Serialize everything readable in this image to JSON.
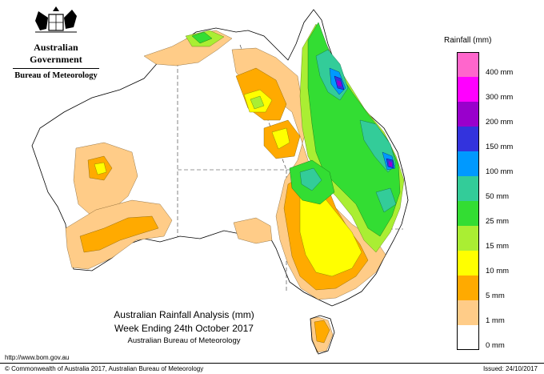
{
  "header": {
    "government": "Australian Government",
    "bureau": "Bureau of Meteorology"
  },
  "legend": {
    "title": "Rainfall (mm)",
    "items": [
      {
        "label": "400 mm",
        "color": "#ff66cc"
      },
      {
        "label": "300 mm",
        "color": "#ff00ff"
      },
      {
        "label": "200 mm",
        "color": "#9900cc"
      },
      {
        "label": "150 mm",
        "color": "#3333dd"
      },
      {
        "label": "100 mm",
        "color": "#0099ff"
      },
      {
        "label": "50 mm",
        "color": "#33cc99"
      },
      {
        "label": "25 mm",
        "color": "#33dd33"
      },
      {
        "label": "15 mm",
        "color": "#aaee33"
      },
      {
        "label": "10 mm",
        "color": "#ffff00"
      },
      {
        "label": "5 mm",
        "color": "#ffaa00"
      },
      {
        "label": "1 mm",
        "color": "#ffcc88"
      },
      {
        "label": "0 mm",
        "color": "#ffffff"
      }
    ]
  },
  "title": {
    "line1": "Australian Rainfall Analysis (mm)",
    "line2": "Week Ending 24th October 2017",
    "line3": "Australian Bureau of Meteorology"
  },
  "footer": {
    "url": "http://www.bom.gov.au",
    "copyright": "© Commonwealth of Australia 2017, Australian Bureau of Meteorology",
    "issued": "Issued: 24/10/2017"
  }
}
